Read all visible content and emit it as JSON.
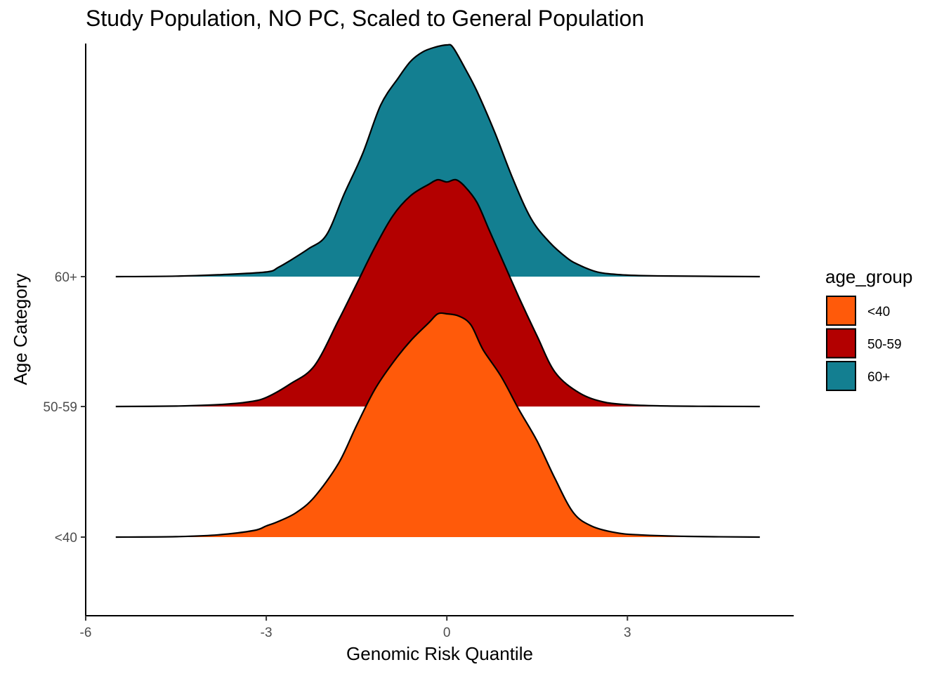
{
  "chart_data": {
    "type": "area",
    "subtype": "ridgeline density",
    "title": "Study Population, NO PC, Scaled to General Population",
    "xlabel": "Genomic Risk Quantile",
    "ylabel": "Age Category",
    "xlim": [
      -6,
      6
    ],
    "x_ticks": [
      "-6",
      "-3",
      "0",
      "3"
    ],
    "x_tick_values": [
      -6,
      -3,
      0,
      3
    ],
    "categories": [
      "<40",
      "50-59",
      "60+"
    ],
    "grid": false,
    "legend": {
      "title": "age_group",
      "position": "right",
      "entries": [
        "<40",
        "50-59",
        "60+"
      ]
    },
    "colors": {
      "<40": "#FF5A0A",
      "50-59": "#B30000",
      "60+": "#137F91"
    },
    "series": [
      {
        "name": "<40",
        "x": [
          -5.5,
          -4.5,
          -3.8,
          -3.2,
          -3.0,
          -2.8,
          -2.5,
          -2.2,
          -1.8,
          -1.5,
          -1.2,
          -0.9,
          -0.6,
          -0.3,
          -0.15,
          0.0,
          0.2,
          0.4,
          0.6,
          0.9,
          1.2,
          1.5,
          1.8,
          2.1,
          2.4,
          2.8,
          3.2,
          4.0,
          5.2
        ],
        "density": [
          0.0,
          0.002,
          0.01,
          0.03,
          0.05,
          0.07,
          0.11,
          0.18,
          0.33,
          0.5,
          0.66,
          0.78,
          0.88,
          0.96,
          1.0,
          1.0,
          0.99,
          0.95,
          0.84,
          0.72,
          0.57,
          0.43,
          0.26,
          0.11,
          0.05,
          0.02,
          0.01,
          0.003,
          0.0
        ]
      },
      {
        "name": "50-59",
        "x": [
          -5.5,
          -4.5,
          -3.8,
          -3.3,
          -3.0,
          -2.6,
          -2.2,
          -1.8,
          -1.5,
          -1.2,
          -0.9,
          -0.6,
          -0.3,
          -0.15,
          0.0,
          0.15,
          0.3,
          0.5,
          0.7,
          0.9,
          1.2,
          1.5,
          1.8,
          2.2,
          2.6,
          3.0,
          3.5,
          4.2,
          5.2
        ],
        "density": [
          0.0,
          0.002,
          0.008,
          0.02,
          0.04,
          0.1,
          0.18,
          0.38,
          0.54,
          0.7,
          0.84,
          0.93,
          0.98,
          1.0,
          0.99,
          1.0,
          0.97,
          0.9,
          0.78,
          0.66,
          0.48,
          0.31,
          0.15,
          0.06,
          0.02,
          0.008,
          0.003,
          0.001,
          0.0
        ]
      },
      {
        "name": "60+",
        "x": [
          -5.5,
          -4.5,
          -3.8,
          -3.0,
          -2.8,
          -2.6,
          -2.3,
          -2.0,
          -1.7,
          -1.4,
          -1.1,
          -0.8,
          -0.6,
          -0.4,
          -0.2,
          0.0,
          0.1,
          0.3,
          0.5,
          0.8,
          1.1,
          1.4,
          1.7,
          2.0,
          2.2,
          2.5,
          2.9,
          3.5,
          5.2
        ],
        "density": [
          0.0,
          0.002,
          0.008,
          0.02,
          0.04,
          0.07,
          0.12,
          0.18,
          0.36,
          0.53,
          0.74,
          0.86,
          0.93,
          0.97,
          0.99,
          1.0,
          0.99,
          0.9,
          0.8,
          0.62,
          0.42,
          0.25,
          0.15,
          0.08,
          0.05,
          0.02,
          0.008,
          0.003,
          0.0
        ]
      }
    ]
  }
}
